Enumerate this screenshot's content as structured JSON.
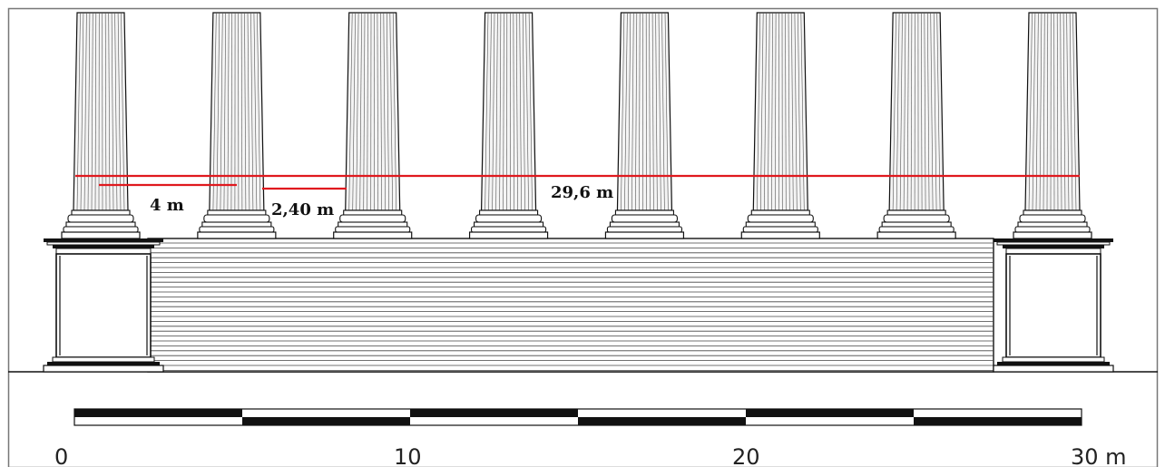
{
  "drawing": {
    "column_count": 8,
    "colors": {
      "ink": "#111111",
      "column_fill": "#f4f4f4",
      "measure_line": "#e0191e",
      "background": "#ffffff"
    }
  },
  "measurements": {
    "overall": "29,6 m",
    "column_diameter": "4 m",
    "intercolumnium": "2,40 m"
  },
  "scale_bar": {
    "labels": [
      "0",
      "10",
      "20",
      "30 m"
    ]
  }
}
